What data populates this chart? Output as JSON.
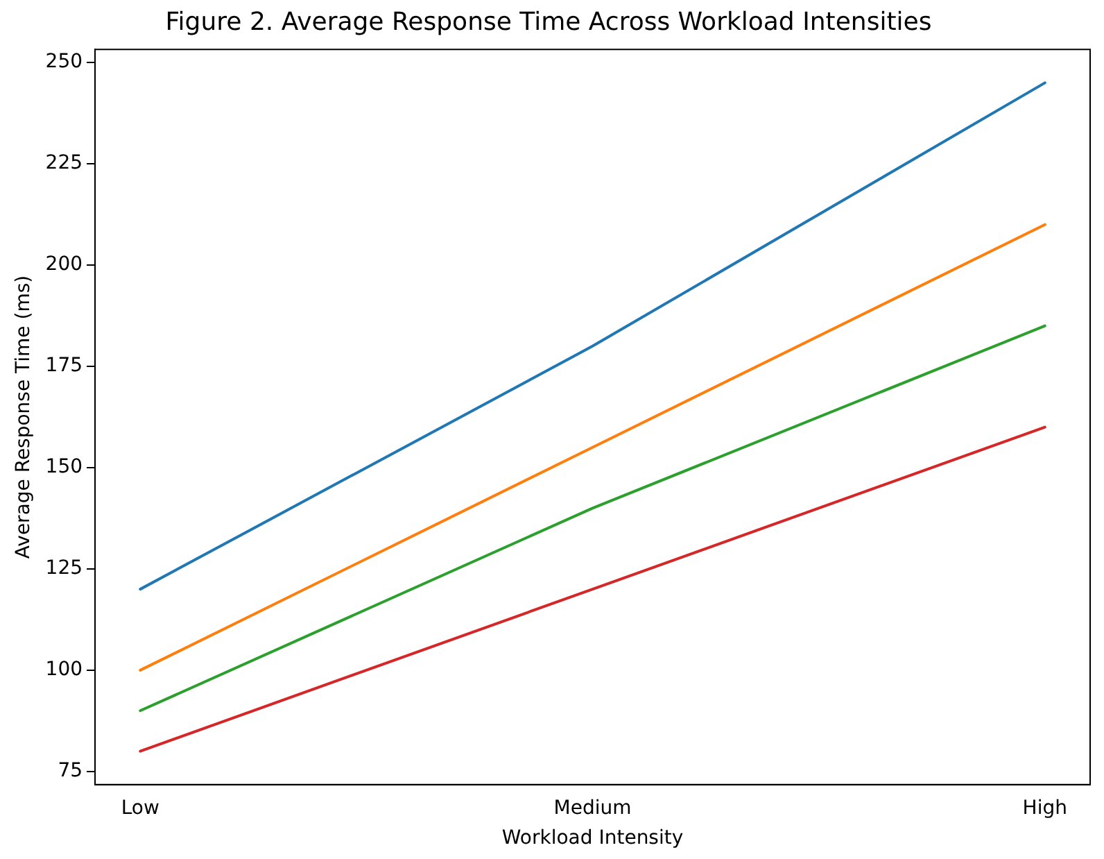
{
  "chart_data": {
    "type": "line",
    "title": "Figure 2. Average Response Time Across Workload Intensities",
    "xlabel": "Workload Intensity",
    "ylabel": "Average Response Time (ms)",
    "categories": [
      "Low",
      "Medium",
      "High"
    ],
    "series": [
      {
        "color": "#1f77b4",
        "values": [
          120,
          180,
          245
        ]
      },
      {
        "color": "#ff7f0e",
        "values": [
          100,
          155,
          210
        ]
      },
      {
        "color": "#2ca02c",
        "values": [
          90,
          140,
          185
        ]
      },
      {
        "color": "#d62728",
        "values": [
          80,
          120,
          160
        ]
      }
    ],
    "ylim": [
      71.75,
      253.25
    ],
    "yticks": [
      75,
      100,
      125,
      150,
      175,
      200,
      225,
      250
    ],
    "grid": false,
    "legend": false,
    "marker": "none",
    "line_style": "solid"
  }
}
